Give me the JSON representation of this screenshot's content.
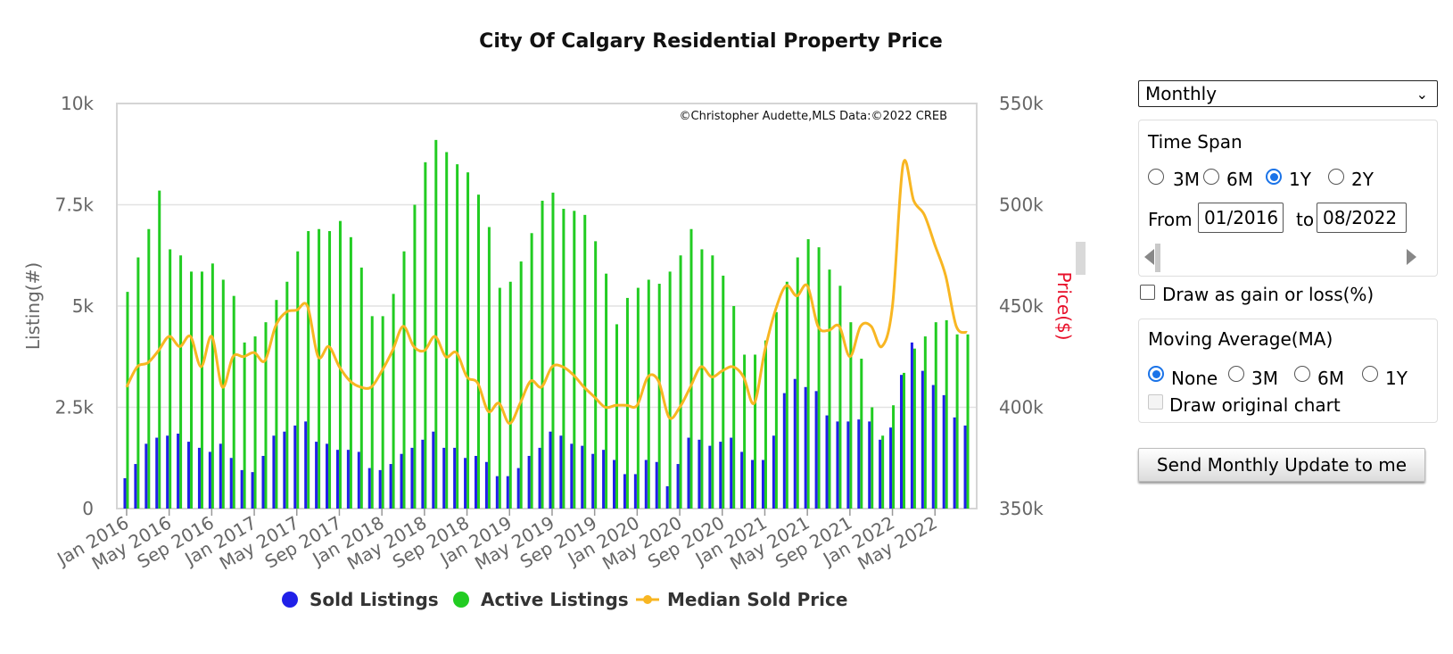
{
  "chart_data": {
    "type": "bar",
    "title": "City Of Calgary Residential Property Price",
    "credit": "©Christopher Audette,MLS Data:©2022 CREB",
    "ylabel": "Listing(#)",
    "y2label": "Price($)",
    "ylim": [
      0,
      10000
    ],
    "y2lim": [
      350000,
      550000
    ],
    "yticks": [
      "0",
      "2.5k",
      "5k",
      "7.5k",
      "10k"
    ],
    "y2ticks": [
      "350k",
      "400k",
      "450k",
      "500k",
      "550k"
    ],
    "xticks": [
      "Jan 2016",
      "May 2016",
      "Sep 2016",
      "Jan 2017",
      "May 2017",
      "Sep 2017",
      "Jan 2018",
      "May 2018",
      "Sep 2018",
      "Jan 2019",
      "May 2019",
      "Sep 2019",
      "Jan 2020",
      "May 2020",
      "Sep 2020",
      "Jan 2021",
      "May 2021",
      "Sep 2021",
      "Jan 2022",
      "May 2022"
    ],
    "legend_position": "bottom",
    "grid": true,
    "x_start": "2016-01",
    "x_end": "2022-08",
    "series": [
      {
        "name": "Sold Listings",
        "color": "#2020e8",
        "type": "bar",
        "values": [
          750,
          1100,
          1600,
          1750,
          1800,
          1850,
          1650,
          1500,
          1400,
          1600,
          1250,
          950,
          900,
          1300,
          1800,
          1900,
          2050,
          2150,
          1650,
          1600,
          1450,
          1450,
          1400,
          1000,
          950,
          1100,
          1350,
          1500,
          1700,
          1900,
          1500,
          1500,
          1250,
          1300,
          1150,
          800,
          800,
          1000,
          1300,
          1500,
          1900,
          1800,
          1600,
          1550,
          1350,
          1450,
          1200,
          850,
          850,
          1200,
          1150,
          550,
          1100,
          1750,
          1700,
          1550,
          1650,
          1750,
          1400,
          1200,
          1200,
          1800,
          2850,
          3200,
          3000,
          2900,
          2300,
          2150,
          2150,
          2200,
          2150,
          1700,
          2000,
          3300,
          4100,
          3400,
          3050,
          2800,
          2250,
          2050
        ]
      },
      {
        "name": "Active Listings",
        "color": "#22cc22",
        "type": "bar",
        "values": [
          5350,
          6200,
          6900,
          7850,
          6400,
          6250,
          5850,
          5850,
          6050,
          5650,
          5250,
          4100,
          4250,
          4600,
          5150,
          5600,
          6350,
          6850,
          6900,
          6850,
          7100,
          6700,
          5950,
          4750,
          4750,
          5300,
          6350,
          7500,
          8550,
          9100,
          8800,
          8500,
          8300,
          7750,
          6950,
          5450,
          5600,
          6100,
          6800,
          7600,
          7800,
          7400,
          7350,
          7250,
          6600,
          5800,
          4550,
          5200,
          5450,
          5650,
          5550,
          5850,
          6250,
          6900,
          6400,
          6250,
          5750,
          5000,
          3800,
          3800,
          4150,
          4850,
          5600,
          6200,
          6650,
          6450,
          5900,
          5500,
          4600,
          3700,
          2500,
          1800,
          2550,
          3350,
          3950,
          4250,
          4600,
          4650,
          4300,
          4300
        ]
      },
      {
        "name": "Median Sold Price",
        "color": "#f8b622",
        "type": "line",
        "values": [
          410000,
          420000,
          422000,
          428000,
          435000,
          430000,
          435000,
          420000,
          435000,
          410000,
          425000,
          425000,
          427000,
          423000,
          440000,
          447000,
          448000,
          450000,
          425000,
          430000,
          420000,
          413000,
          410000,
          410000,
          418000,
          428000,
          440000,
          430000,
          428000,
          435000,
          425000,
          427000,
          415000,
          412000,
          398000,
          402000,
          392000,
          402000,
          413000,
          410000,
          420000,
          420000,
          416000,
          410000,
          405000,
          400000,
          401000,
          401000,
          401000,
          415000,
          413000,
          395000,
          400000,
          410000,
          420000,
          415000,
          418000,
          420000,
          415000,
          402000,
          428000,
          448000,
          460000,
          455000,
          460000,
          440000,
          438000,
          440000,
          425000,
          440000,
          440000,
          430000,
          450000,
          520000,
          502000,
          495000,
          480000,
          465000,
          440000,
          437000
        ]
      }
    ]
  },
  "controls": {
    "period_select": "Monthly",
    "time_span": {
      "title": "Time Span",
      "options": [
        "3M",
        "6M",
        "1Y",
        "2Y"
      ],
      "selected": "1Y",
      "from_label": "From",
      "from_value": "01/2016",
      "to_label": "to",
      "to_value": "08/2022"
    },
    "gain_loss_label": "Draw as gain or loss(%)",
    "moving_average": {
      "title": "Moving Average(MA)",
      "options": [
        "None",
        "3M",
        "6M",
        "1Y"
      ],
      "selected": "None",
      "original_label": "Draw original chart"
    },
    "send_button": "Send Monthly Update to me"
  }
}
